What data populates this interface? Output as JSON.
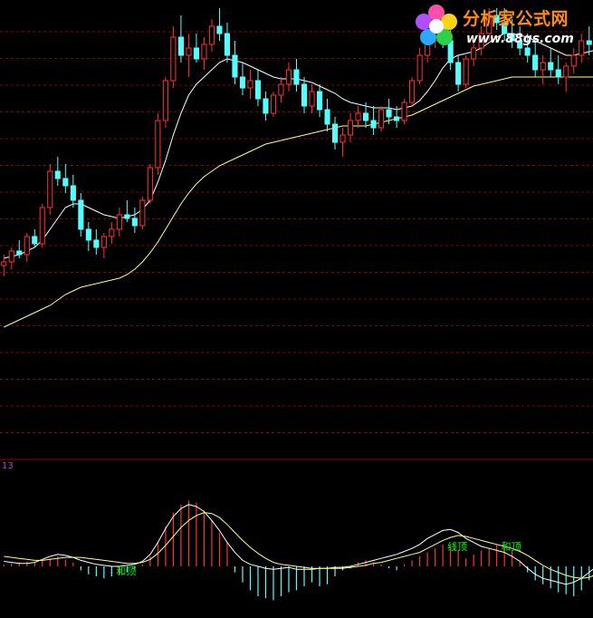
{
  "branding": {
    "site_name": "分析家公式网",
    "site_url": "www.88gs.com",
    "colors": {
      "title": "#ff8a1a",
      "url": "#ffffff"
    }
  },
  "sub_panel": {
    "param_label": "13"
  },
  "colors": {
    "background": "#000000",
    "up_candle": "#ff3232",
    "down_candle": "#54ffff",
    "ma_short": "#ffffff",
    "ma_long": "#ffff80",
    "grid": "#8b0000",
    "divider": "#a00000",
    "hist_up": "#ff3232",
    "hist_down": "#54ffff",
    "annotation": "#00ff00"
  },
  "chart_data": [
    {
      "type": "candlestick",
      "title": "",
      "xlabel": "",
      "ylabel": "",
      "grid": true,
      "ylim": [
        0,
        100
      ],
      "candles": [
        {
          "o": 28,
          "h": 31,
          "l": 25,
          "c": 29
        },
        {
          "o": 29,
          "h": 33,
          "l": 27,
          "c": 32
        },
        {
          "o": 32,
          "h": 35,
          "l": 30,
          "c": 31
        },
        {
          "o": 31,
          "h": 37,
          "l": 29,
          "c": 36
        },
        {
          "o": 36,
          "h": 38,
          "l": 33,
          "c": 34
        },
        {
          "o": 34,
          "h": 45,
          "l": 33,
          "c": 44
        },
        {
          "o": 44,
          "h": 56,
          "l": 42,
          "c": 54
        },
        {
          "o": 54,
          "h": 58,
          "l": 50,
          "c": 52
        },
        {
          "o": 52,
          "h": 56,
          "l": 48,
          "c": 50
        },
        {
          "o": 50,
          "h": 53,
          "l": 44,
          "c": 46
        },
        {
          "o": 46,
          "h": 48,
          "l": 36,
          "c": 38
        },
        {
          "o": 38,
          "h": 40,
          "l": 32,
          "c": 35
        },
        {
          "o": 35,
          "h": 38,
          "l": 31,
          "c": 33
        },
        {
          "o": 33,
          "h": 37,
          "l": 30,
          "c": 36
        },
        {
          "o": 36,
          "h": 40,
          "l": 34,
          "c": 38
        },
        {
          "o": 38,
          "h": 44,
          "l": 36,
          "c": 42
        },
        {
          "o": 42,
          "h": 46,
          "l": 40,
          "c": 41
        },
        {
          "o": 41,
          "h": 44,
          "l": 37,
          "c": 39
        },
        {
          "o": 39,
          "h": 47,
          "l": 38,
          "c": 46
        },
        {
          "o": 46,
          "h": 56,
          "l": 45,
          "c": 55
        },
        {
          "o": 55,
          "h": 70,
          "l": 53,
          "c": 68
        },
        {
          "o": 68,
          "h": 80,
          "l": 66,
          "c": 79
        },
        {
          "o": 79,
          "h": 94,
          "l": 77,
          "c": 91
        },
        {
          "o": 91,
          "h": 97,
          "l": 84,
          "c": 86
        },
        {
          "o": 86,
          "h": 92,
          "l": 80,
          "c": 88
        },
        {
          "o": 88,
          "h": 92,
          "l": 84,
          "c": 85
        },
        {
          "o": 85,
          "h": 91,
          "l": 82,
          "c": 89
        },
        {
          "o": 89,
          "h": 96,
          "l": 87,
          "c": 94
        },
        {
          "o": 94,
          "h": 99,
          "l": 90,
          "c": 92
        },
        {
          "o": 92,
          "h": 95,
          "l": 84,
          "c": 86
        },
        {
          "o": 86,
          "h": 90,
          "l": 78,
          "c": 80
        },
        {
          "o": 80,
          "h": 84,
          "l": 75,
          "c": 77
        },
        {
          "o": 77,
          "h": 82,
          "l": 74,
          "c": 79
        },
        {
          "o": 79,
          "h": 82,
          "l": 72,
          "c": 74
        },
        {
          "o": 74,
          "h": 76,
          "l": 68,
          "c": 70
        },
        {
          "o": 70,
          "h": 76,
          "l": 69,
          "c": 75
        },
        {
          "o": 75,
          "h": 80,
          "l": 73,
          "c": 78
        },
        {
          "o": 78,
          "h": 84,
          "l": 76,
          "c": 82
        },
        {
          "o": 82,
          "h": 85,
          "l": 76,
          "c": 78
        },
        {
          "o": 78,
          "h": 80,
          "l": 70,
          "c": 72
        },
        {
          "o": 72,
          "h": 78,
          "l": 70,
          "c": 76
        },
        {
          "o": 76,
          "h": 78,
          "l": 69,
          "c": 71
        },
        {
          "o": 71,
          "h": 74,
          "l": 65,
          "c": 67
        },
        {
          "o": 67,
          "h": 69,
          "l": 60,
          "c": 62
        },
        {
          "o": 62,
          "h": 66,
          "l": 58,
          "c": 64
        },
        {
          "o": 64,
          "h": 70,
          "l": 62,
          "c": 68
        },
        {
          "o": 68,
          "h": 72,
          "l": 66,
          "c": 70
        },
        {
          "o": 70,
          "h": 73,
          "l": 66,
          "c": 68
        },
        {
          "o": 68,
          "h": 72,
          "l": 64,
          "c": 66
        },
        {
          "o": 66,
          "h": 72,
          "l": 65,
          "c": 71
        },
        {
          "o": 71,
          "h": 74,
          "l": 67,
          "c": 69
        },
        {
          "o": 69,
          "h": 72,
          "l": 66,
          "c": 68
        },
        {
          "o": 68,
          "h": 74,
          "l": 67,
          "c": 73
        },
        {
          "o": 73,
          "h": 80,
          "l": 72,
          "c": 79
        },
        {
          "o": 79,
          "h": 88,
          "l": 78,
          "c": 86
        },
        {
          "o": 86,
          "h": 92,
          "l": 84,
          "c": 90
        },
        {
          "o": 90,
          "h": 96,
          "l": 88,
          "c": 94
        },
        {
          "o": 94,
          "h": 98,
          "l": 88,
          "c": 90
        },
        {
          "o": 90,
          "h": 93,
          "l": 82,
          "c": 84
        },
        {
          "o": 84,
          "h": 86,
          "l": 76,
          "c": 78
        },
        {
          "o": 78,
          "h": 86,
          "l": 77,
          "c": 85
        },
        {
          "o": 85,
          "h": 90,
          "l": 83,
          "c": 88
        },
        {
          "o": 88,
          "h": 94,
          "l": 86,
          "c": 92
        },
        {
          "o": 92,
          "h": 99,
          "l": 90,
          "c": 97
        },
        {
          "o": 97,
          "h": 99,
          "l": 93,
          "c": 95
        },
        {
          "o": 95,
          "h": 99,
          "l": 90,
          "c": 92
        },
        {
          "o": 92,
          "h": 96,
          "l": 88,
          "c": 90
        },
        {
          "o": 90,
          "h": 94,
          "l": 86,
          "c": 88
        },
        {
          "o": 88,
          "h": 92,
          "l": 84,
          "c": 86
        },
        {
          "o": 86,
          "h": 90,
          "l": 80,
          "c": 82
        },
        {
          "o": 82,
          "h": 86,
          "l": 78,
          "c": 84
        },
        {
          "o": 84,
          "h": 88,
          "l": 80,
          "c": 82
        },
        {
          "o": 82,
          "h": 86,
          "l": 78,
          "c": 80
        },
        {
          "o": 80,
          "h": 84,
          "l": 76,
          "c": 83
        },
        {
          "o": 83,
          "h": 88,
          "l": 81,
          "c": 86
        },
        {
          "o": 86,
          "h": 92,
          "l": 84,
          "c": 90
        },
        {
          "o": 90,
          "h": 94,
          "l": 86,
          "c": 89
        }
      ],
      "series": [
        {
          "values": [
            30,
            30.5,
            31,
            32,
            33,
            35,
            38,
            41,
            44,
            45,
            45,
            44,
            43,
            42,
            41.5,
            41,
            41.5,
            42,
            43.5,
            46,
            51,
            57,
            64,
            70,
            75,
            78,
            80,
            82,
            84,
            85,
            84.5,
            84,
            83,
            82,
            81,
            80,
            79.5,
            79.5,
            79.5,
            79,
            78.5,
            77.5,
            76.5,
            75.5,
            74,
            73,
            72.5,
            72,
            71.5,
            71.5,
            71.5,
            71,
            71.5,
            72,
            73.5,
            76,
            79,
            82.5,
            85,
            86,
            86.5,
            87,
            88,
            89.5,
            91,
            92,
            92,
            91.5,
            91,
            90,
            89,
            88,
            87,
            86,
            86,
            86.5,
            87,
            87.5
          ]
        },
        {
          "values": [
            11,
            12,
            13,
            14,
            15,
            16,
            17,
            18.5,
            20,
            21,
            22,
            22.5,
            23,
            23.5,
            24,
            24.5,
            25.5,
            27,
            29,
            31.5,
            34.5,
            38,
            41.5,
            45,
            48,
            50.5,
            52.5,
            54,
            55.5,
            56.5,
            57.5,
            58.5,
            59.5,
            60.5,
            61.5,
            62,
            62.5,
            63,
            63.5,
            64,
            64.5,
            65,
            65.5,
            66,
            66.5,
            66.5,
            66.5,
            66.5,
            67,
            67.5,
            68,
            68.5,
            69,
            69.5,
            70.5,
            71.5,
            72.5,
            73.5,
            74.5,
            75.5,
            76.5,
            77.5,
            78,
            78.5,
            79,
            79.5,
            80,
            80,
            80,
            80,
            80,
            80,
            80,
            80,
            80,
            80,
            80,
            80
          ]
        }
      ]
    },
    {
      "type": "bar",
      "title": "",
      "xlabel": "",
      "ylabel": "",
      "grid": false,
      "ylim": [
        -50,
        100
      ],
      "histogram": [
        2,
        3,
        4,
        5,
        4,
        6,
        8,
        10,
        7,
        4,
        -4,
        -8,
        -10,
        -12,
        -10,
        -8,
        -6,
        -4,
        2,
        10,
        24,
        40,
        54,
        62,
        66,
        64,
        56,
        46,
        34,
        24,
        -6,
        -16,
        -24,
        -30,
        -32,
        -34,
        -30,
        -26,
        -24,
        -20,
        -16,
        -20,
        -18,
        -10,
        -4,
        -2,
        4,
        6,
        4,
        2,
        -2,
        -4,
        2,
        6,
        10,
        14,
        18,
        22,
        20,
        16,
        8,
        12,
        16,
        18,
        22,
        20,
        16,
        6,
        -6,
        -14,
        -18,
        -22,
        -26,
        -28,
        -30,
        -24,
        -14,
        -2
      ],
      "series": [
        {
          "values": [
            5,
            4,
            3,
            3,
            4,
            7,
            10,
            12,
            11,
            9,
            6,
            4,
            2,
            1,
            0,
            0,
            1,
            2,
            5,
            12,
            24,
            38,
            50,
            58,
            62,
            60,
            55,
            46,
            36,
            24,
            14,
            6,
            2,
            0,
            -2,
            -3,
            -2,
            -1,
            -3,
            -3,
            -3,
            -2,
            -2,
            -1,
            -1,
            0,
            2,
            4,
            6,
            8,
            10,
            12,
            15,
            18,
            22,
            28,
            32,
            36,
            37,
            34,
            28,
            24,
            20,
            18,
            16,
            14,
            10,
            5,
            -2,
            -8,
            -12,
            -14,
            -16,
            -18,
            -16,
            -12,
            -6,
            0
          ]
        },
        {
          "values": [
            10,
            9,
            8,
            7,
            6,
            6,
            7,
            8,
            9,
            9,
            9,
            8,
            7,
            6,
            5,
            4,
            3,
            3,
            4,
            7,
            13,
            21,
            30,
            39,
            46,
            51,
            54,
            53,
            49,
            42,
            34,
            26,
            19,
            13,
            8,
            4,
            2,
            1,
            0,
            -1,
            -2,
            -2,
            -2,
            -2,
            -2,
            -1,
            0,
            1,
            3,
            4,
            6,
            8,
            10,
            12,
            14,
            18,
            22,
            26,
            29,
            31,
            30,
            28,
            26,
            24,
            22,
            20,
            18,
            15,
            11,
            6,
            1,
            -3,
            -6,
            -9,
            -11,
            -12,
            -11,
            -8
          ]
        }
      ],
      "annotations": [
        {
          "text": "和顶",
          "bar": 16
        },
        {
          "text": "线顶",
          "bar": 59
        },
        {
          "text": "和顶",
          "bar": 66
        }
      ]
    }
  ]
}
